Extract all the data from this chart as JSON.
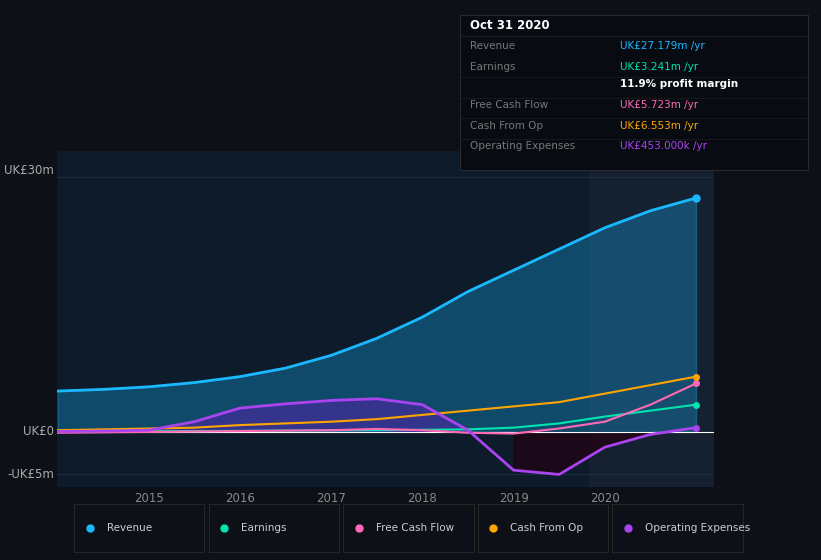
{
  "bg_color": "#0d1117",
  "plot_bg_color": "#0d1b2a",
  "title_box": {
    "date": "Oct 31 2020",
    "rows": [
      {
        "label": "Revenue",
        "value": "UK£27.179m /yr",
        "value_color": "#1ab8ff",
        "divider_after": true
      },
      {
        "label": "Earnings",
        "value": "UK£3.241m /yr",
        "value_color": "#00e5b0",
        "divider_after": false
      },
      {
        "label": "",
        "value": "11.9% profit margin",
        "value_color": "#ffffff",
        "divider_after": true
      },
      {
        "label": "Free Cash Flow",
        "value": "UK£5.723m /yr",
        "value_color": "#ff69b4",
        "divider_after": true
      },
      {
        "label": "Cash From Op",
        "value": "UK£6.553m /yr",
        "value_color": "#ffa500",
        "divider_after": true
      },
      {
        "label": "Operating Expenses",
        "value": "UK£453.000k /yr",
        "value_color": "#aa44ee",
        "divider_after": false
      }
    ]
  },
  "years": [
    2014.0,
    2014.5,
    2015.0,
    2015.5,
    2016.0,
    2016.5,
    2017.0,
    2017.5,
    2018.0,
    2018.5,
    2019.0,
    2019.5,
    2020.0,
    2020.5,
    2021.0
  ],
  "revenue": [
    4.8,
    5.0,
    5.3,
    5.8,
    6.5,
    7.5,
    9.0,
    11.0,
    13.5,
    16.5,
    19.0,
    21.5,
    24.0,
    26.0,
    27.5
  ],
  "earnings": [
    0.05,
    0.06,
    0.08,
    0.1,
    0.12,
    0.15,
    0.18,
    0.2,
    0.25,
    0.3,
    0.5,
    1.0,
    1.8,
    2.5,
    3.2
  ],
  "free_cash_flow": [
    -0.1,
    -0.05,
    0.0,
    0.05,
    0.1,
    0.15,
    0.2,
    0.35,
    0.2,
    -0.1,
    -0.2,
    0.4,
    1.2,
    3.2,
    5.7
  ],
  "cash_from_op": [
    0.2,
    0.3,
    0.4,
    0.5,
    0.8,
    1.0,
    1.2,
    1.5,
    2.0,
    2.5,
    3.0,
    3.5,
    4.5,
    5.5,
    6.5
  ],
  "op_expenses": [
    0.05,
    0.1,
    0.2,
    1.2,
    2.8,
    3.3,
    3.7,
    3.9,
    3.2,
    0.2,
    -4.5,
    -5.0,
    -1.8,
    -0.3,
    0.5
  ],
  "revenue_color": "#1ab8ff",
  "earnings_color": "#00e5b0",
  "fcf_color": "#ff69b4",
  "cashop_color": "#ffa500",
  "opex_color": "#aa44ee",
  "highlight_x_start": 2019.83,
  "highlight_x_end": 2021.2,
  "ylim_min": -6.5,
  "ylim_max": 33.0,
  "xlim_min": 2014.0,
  "xlim_max": 2021.2,
  "xticks": [
    2015,
    2016,
    2017,
    2018,
    2019,
    2020
  ],
  "legend_items": [
    {
      "label": "Revenue",
      "color": "#1ab8ff"
    },
    {
      "label": "Earnings",
      "color": "#00e5b0"
    },
    {
      "label": "Free Cash Flow",
      "color": "#ff69b4"
    },
    {
      "label": "Cash From Op",
      "color": "#ffa500"
    },
    {
      "label": "Operating Expenses",
      "color": "#aa44ee"
    }
  ]
}
